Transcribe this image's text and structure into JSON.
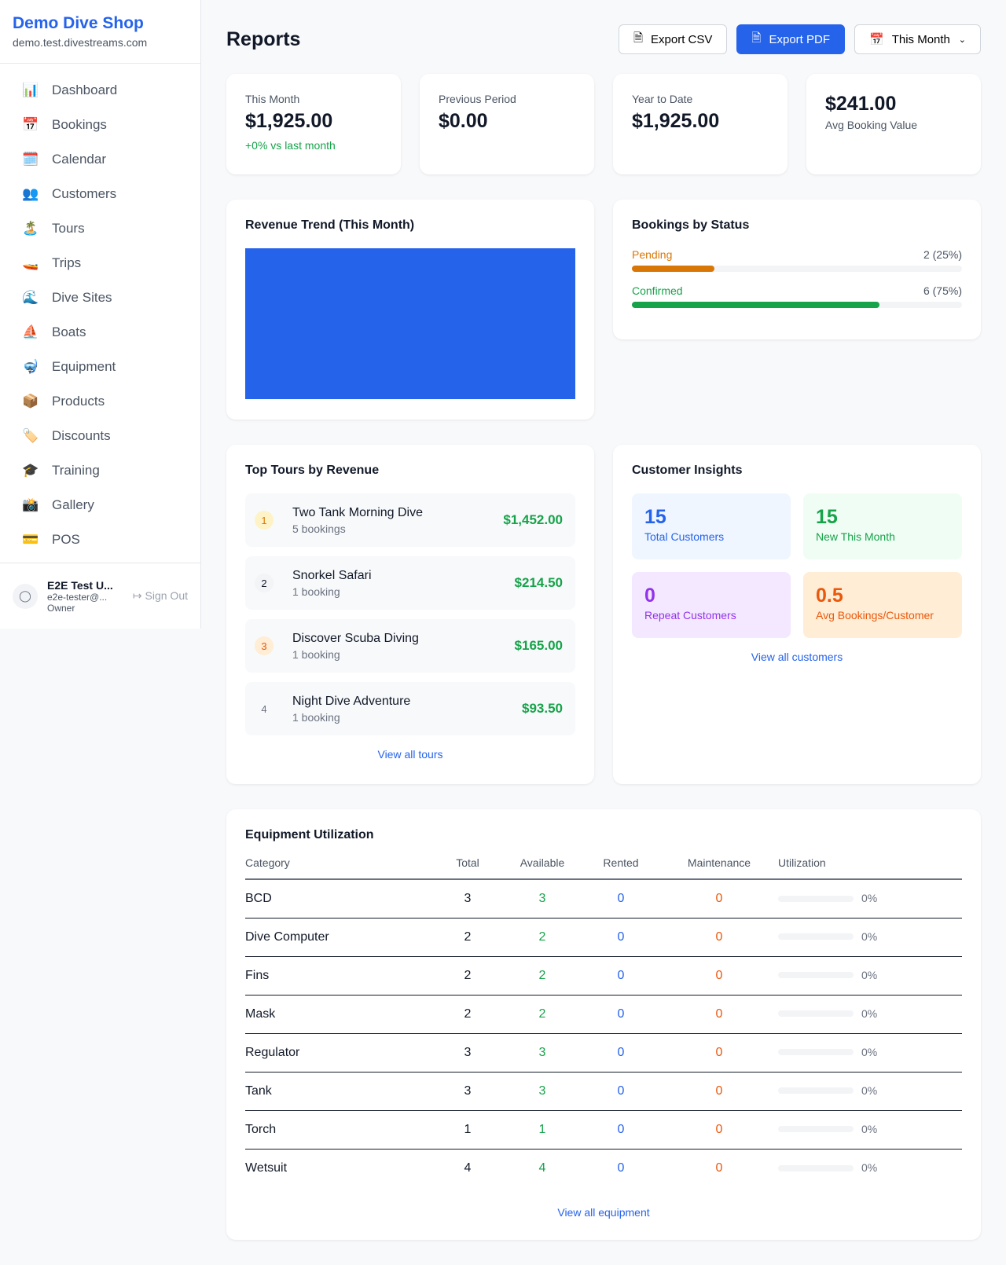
{
  "sidebar": {
    "shop_name": "Demo Dive Shop",
    "domain": "demo.test.divestreams.com",
    "items": [
      {
        "icon": "📊",
        "label": "Dashboard"
      },
      {
        "icon": "📅",
        "label": "Bookings"
      },
      {
        "icon": "🗓️",
        "label": "Calendar"
      },
      {
        "icon": "👥",
        "label": "Customers"
      },
      {
        "icon": "🏝️",
        "label": "Tours"
      },
      {
        "icon": "🚤",
        "label": "Trips"
      },
      {
        "icon": "🌊",
        "label": "Dive Sites"
      },
      {
        "icon": "⛵",
        "label": "Boats"
      },
      {
        "icon": "🤿",
        "label": "Equipment"
      },
      {
        "icon": "📦",
        "label": "Products"
      },
      {
        "icon": "🏷️",
        "label": "Discounts"
      },
      {
        "icon": "🎓",
        "label": "Training"
      },
      {
        "icon": "📸",
        "label": "Gallery"
      },
      {
        "icon": "💳",
        "label": "POS"
      }
    ],
    "user": {
      "name": "E2E Test U...",
      "email": "e2e-tester@...",
      "role": "Owner",
      "sign_out": "Sign Out"
    }
  },
  "header": {
    "title": "Reports",
    "export_csv": "Export CSV",
    "export_pdf": "Export PDF",
    "period": "This Month"
  },
  "stats": [
    {
      "label": "This Month",
      "value": "$1,925.00",
      "change": "+0% vs last month"
    },
    {
      "label": "Previous Period",
      "value": "$0.00"
    },
    {
      "label": "Year to Date",
      "value": "$1,925.00"
    },
    {
      "value": "$241.00",
      "label": "Avg Booking Value"
    }
  ],
  "revenue": {
    "title": "Revenue Trend (This Month)",
    "color": "#2563eb"
  },
  "status": {
    "title": "Bookings by Status",
    "items": [
      {
        "label": "Pending",
        "value": "2 (25%)",
        "percent": 25,
        "color": "#d97706"
      },
      {
        "label": "Confirmed",
        "value": "6 (75%)",
        "percent": 75,
        "color": "#16a34a"
      }
    ]
  },
  "tours": {
    "title": "Top Tours by Revenue",
    "link": "View all tours",
    "items": [
      {
        "rank": "1",
        "name": "Two Tank Morning Dive",
        "bookings": "5 bookings",
        "amount": "$1,452.00"
      },
      {
        "rank": "2",
        "name": "Snorkel Safari",
        "bookings": "1 booking",
        "amount": "$214.50"
      },
      {
        "rank": "3",
        "name": "Discover Scuba Diving",
        "bookings": "1 booking",
        "amount": "$165.00"
      },
      {
        "rank": "4",
        "name": "Night Dive Adventure",
        "bookings": "1 booking",
        "amount": "$93.50"
      }
    ]
  },
  "insights": {
    "title": "Customer Insights",
    "link": "View all customers",
    "tiles": [
      {
        "value": "15",
        "label": "Total Customers"
      },
      {
        "value": "15",
        "label": "New This Month"
      },
      {
        "value": "0",
        "label": "Repeat Customers"
      },
      {
        "value": "0.5",
        "label": "Avg Bookings/Customer"
      }
    ]
  },
  "equipment": {
    "title": "Equipment Utilization",
    "link": "View all equipment",
    "headers": [
      "Category",
      "Total",
      "Available",
      "Rented",
      "Maintenance",
      "Utilization"
    ],
    "rows": [
      [
        "BCD",
        "3",
        "3",
        "0",
        "0",
        "0%"
      ],
      [
        "Dive Computer",
        "2",
        "2",
        "0",
        "0",
        "0%"
      ],
      [
        "Fins",
        "2",
        "2",
        "0",
        "0",
        "0%"
      ],
      [
        "Mask",
        "2",
        "2",
        "0",
        "0",
        "0%"
      ],
      [
        "Regulator",
        "3",
        "3",
        "0",
        "0",
        "0%"
      ],
      [
        "Tank",
        "3",
        "3",
        "0",
        "0",
        "0%"
      ],
      [
        "Torch",
        "1",
        "1",
        "0",
        "0",
        "0%"
      ],
      [
        "Wetsuit",
        "4",
        "4",
        "0",
        "0",
        "0%"
      ]
    ]
  }
}
